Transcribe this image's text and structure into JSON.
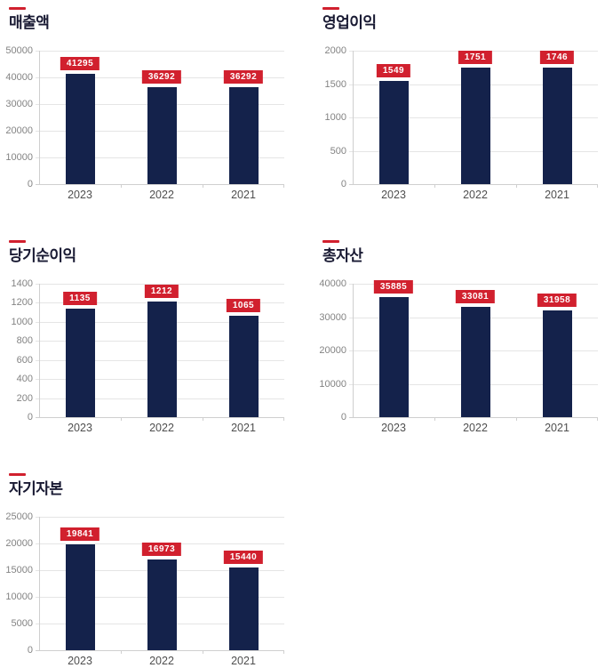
{
  "theme": {
    "accent_red": "#d1202e",
    "bar_color": "#14224b",
    "bar_label_text": "#ffffff",
    "grid_color": "#e5e5e5",
    "axis_color": "#cfcfcf",
    "ytick_label_color": "#838383",
    "xtick_label_color": "#4f4f4f",
    "title_color": "#191a33",
    "background": "#ffffff"
  },
  "chart_data": [
    {
      "type": "bar",
      "title": "매출액",
      "categories": [
        "2023",
        "2022",
        "2021"
      ],
      "values": [
        41295,
        36292,
        36292
      ],
      "data_labels": [
        "41295",
        "36292",
        "36292"
      ],
      "ylim": [
        0,
        50000
      ],
      "ytick_step": 10000,
      "ytick_labels": [
        "50000",
        "40000",
        "30000",
        "20000",
        "10000",
        "0"
      ],
      "grid": true,
      "legend": "none"
    },
    {
      "type": "bar",
      "title": "영업이익",
      "categories": [
        "2023",
        "2022",
        "2021"
      ],
      "values": [
        1549,
        1751,
        1746
      ],
      "data_labels": [
        "1549",
        "1751",
        "1746"
      ],
      "ylim": [
        0,
        2000
      ],
      "ytick_step": 500,
      "ytick_labels": [
        "2000",
        "1500",
        "1000",
        "500",
        "0"
      ],
      "grid": true,
      "legend": "none"
    },
    {
      "type": "bar",
      "title": "당기순이익",
      "categories": [
        "2023",
        "2022",
        "2021"
      ],
      "values": [
        1135,
        1212,
        1065
      ],
      "data_labels": [
        "1135",
        "1212",
        "1065"
      ],
      "ylim": [
        0,
        1400
      ],
      "ytick_step": 200,
      "ytick_labels": [
        "1400",
        "1200",
        "1000",
        "800",
        "600",
        "400",
        "200",
        "0"
      ],
      "grid": true,
      "legend": "none"
    },
    {
      "type": "bar",
      "title": "총자산",
      "categories": [
        "2023",
        "2022",
        "2021"
      ],
      "values": [
        35885,
        33081,
        31958
      ],
      "data_labels": [
        "35885",
        "33081",
        "31958"
      ],
      "ylim": [
        0,
        40000
      ],
      "ytick_step": 10000,
      "ytick_labels": [
        "40000",
        "30000",
        "20000",
        "10000",
        "0"
      ],
      "grid": true,
      "legend": "none"
    },
    {
      "type": "bar",
      "title": "자기자본",
      "categories": [
        "2023",
        "2022",
        "2021"
      ],
      "values": [
        19841,
        16973,
        15440
      ],
      "data_labels": [
        "19841",
        "16973",
        "15440"
      ],
      "ylim": [
        0,
        25000
      ],
      "ytick_step": 5000,
      "ytick_labels": [
        "25000",
        "20000",
        "15000",
        "10000",
        "5000",
        "0"
      ],
      "grid": true,
      "legend": "none"
    }
  ]
}
